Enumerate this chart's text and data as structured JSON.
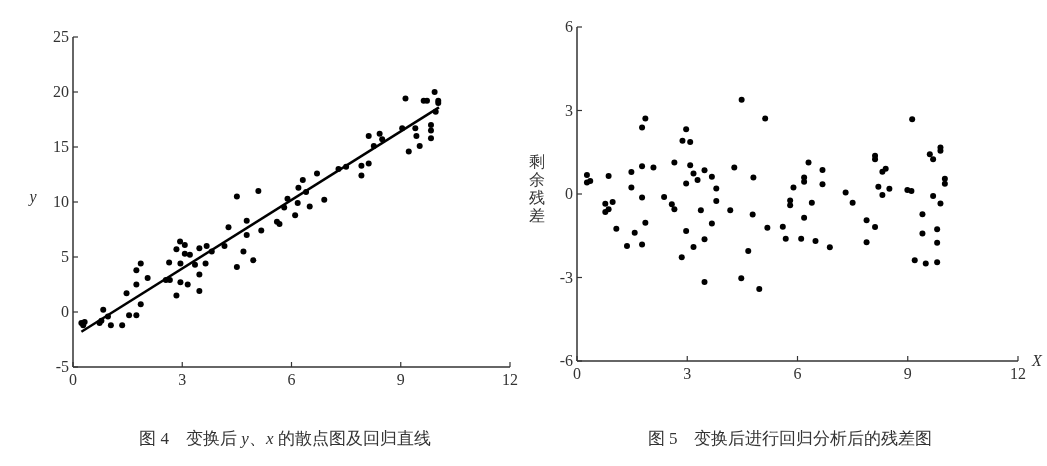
{
  "chart_data": [
    {
      "type": "scatter",
      "title": "图 4　变换后 *y*、*x* 的散点图及回归直线",
      "ylabel": "y",
      "xlim": [
        0,
        12
      ],
      "ylim": [
        -5,
        25
      ],
      "xticks": [
        0,
        3,
        6,
        9,
        12
      ],
      "yticks": [
        -5,
        0,
        5,
        10,
        15,
        20,
        25
      ],
      "series": [
        {
          "type": "scatter",
          "marker": "circle",
          "color": "#000000",
          "x": [
            0.23,
            0.32,
            0.28,
            0.73,
            0.83,
            0.78,
            0.96,
            1.04,
            1.35,
            1.47,
            1.54,
            1.74,
            1.74,
            1.74,
            1.86,
            1.86,
            2.05,
            2.55,
            2.64,
            2.66,
            2.84,
            2.84,
            2.94,
            2.95,
            2.95,
            3.07,
            3.07,
            3.15,
            3.21,
            3.35,
            3.47,
            3.47,
            3.47,
            3.64,
            3.67,
            3.81,
            4.16,
            4.27,
            4.5,
            4.5,
            4.68,
            4.77,
            4.77,
            4.95,
            5.09,
            5.17,
            5.6,
            5.67,
            5.8,
            5.89,
            6.1,
            6.17,
            6.19,
            6.31,
            6.4,
            6.5,
            6.7,
            6.9,
            7.29,
            7.5,
            7.92,
            7.92,
            8.12,
            8.12,
            8.26,
            8.42,
            8.49,
            9.04,
            9.13,
            9.22,
            9.4,
            9.43,
            9.52,
            9.63,
            9.72,
            9.83,
            9.83,
            9.83,
            9.93,
            9.96,
            10.03,
            10.03
          ],
          "values": [
            -1.0,
            -0.9,
            -1.2,
            -1.0,
            0.2,
            -0.8,
            -0.4,
            -1.2,
            -1.2,
            1.7,
            -0.3,
            3.8,
            2.5,
            -0.3,
            4.4,
            0.7,
            3.1,
            2.9,
            4.5,
            2.9,
            5.7,
            1.5,
            6.4,
            4.4,
            2.7,
            6.1,
            5.3,
            2.5,
            5.2,
            4.3,
            5.8,
            3.4,
            1.9,
            4.4,
            6.0,
            5.5,
            6.0,
            7.7,
            10.5,
            4.1,
            5.5,
            8.3,
            7.0,
            4.7,
            11.0,
            7.4,
            8.2,
            8.0,
            9.5,
            10.3,
            8.8,
            9.9,
            11.3,
            12.0,
            10.9,
            9.6,
            12.6,
            10.2,
            13.0,
            13.2,
            13.3,
            12.4,
            13.5,
            16.0,
            15.1,
            16.2,
            15.7,
            16.7,
            19.4,
            14.6,
            16.7,
            16.0,
            15.1,
            19.2,
            19.2,
            17.0,
            16.5,
            15.8,
            20.0,
            18.2,
            19.2,
            19.0
          ]
        },
        {
          "type": "line",
          "color": "#000000",
          "x": [
            0.23,
            10.05
          ],
          "values": [
            -1.8,
            18.6
          ]
        }
      ]
    },
    {
      "type": "scatter",
      "title": "图 5　变换后进行回归分析后的残差图",
      "xlabel": "X",
      "ylabel": "剩余残差",
      "xlim": [
        0,
        12
      ],
      "ylim": [
        -6,
        6
      ],
      "xticks": [
        0,
        3,
        6,
        9,
        12
      ],
      "yticks": [
        -6,
        -3,
        0,
        3,
        6
      ],
      "series": [
        {
          "type": "scatter",
          "marker": "circle",
          "color": "#000000",
          "x": [
            0.27,
            0.27,
            0.36,
            0.77,
            0.77,
            0.86,
            0.86,
            0.97,
            1.07,
            1.36,
            1.48,
            1.48,
            1.57,
            1.77,
            1.77,
            1.77,
            1.77,
            1.86,
            1.86,
            2.08,
            2.37,
            2.58,
            2.65,
            2.65,
            2.85,
            2.87,
            2.97,
            2.97,
            2.97,
            3.08,
            3.08,
            3.17,
            3.17,
            3.28,
            3.37,
            3.47,
            3.47,
            3.47,
            3.67,
            3.67,
            3.79,
            3.79,
            4.17,
            4.28,
            4.48,
            4.47,
            4.66,
            4.8,
            4.78,
            4.96,
            5.12,
            5.18,
            5.6,
            5.68,
            5.8,
            5.8,
            5.89,
            6.1,
            6.18,
            6.18,
            6.18,
            6.3,
            6.39,
            6.49,
            6.68,
            6.68,
            6.88,
            7.31,
            7.5,
            7.88,
            7.88,
            8.11,
            8.11,
            8.11,
            8.2,
            8.31,
            8.31,
            8.4,
            8.5,
            8.99,
            9.1,
            9.12,
            9.19,
            9.4,
            9.4,
            9.49,
            9.6,
            9.69,
            9.69,
            9.8,
            9.8,
            9.8,
            9.89,
            9.89,
            9.89,
            10.01,
            10.01
          ],
          "values": [
            0.68,
            0.41,
            0.47,
            -0.35,
            -0.65,
            -0.55,
            0.65,
            -0.29,
            -1.25,
            -1.87,
            0.79,
            0.23,
            -1.39,
            2.39,
            1.0,
            -0.13,
            -1.81,
            2.71,
            -1.03,
            0.95,
            -0.11,
            -0.37,
            1.13,
            -0.55,
            -2.27,
            1.91,
            2.33,
            0.38,
            -1.33,
            1.87,
            1.03,
            0.74,
            -1.9,
            0.5,
            -0.58,
            0.85,
            -1.63,
            -3.16,
            0.62,
            -1.06,
            0.2,
            -0.25,
            -0.58,
            0.95,
            3.39,
            -3.03,
            -2.05,
            0.59,
            -0.74,
            -3.41,
            2.71,
            -1.21,
            -1.18,
            -1.61,
            -0.23,
            -0.4,
            0.23,
            -1.61,
            -0.85,
            0.59,
            0.44,
            1.13,
            -0.31,
            -1.69,
            0.86,
            0.35,
            -1.91,
            0.05,
            -0.31,
            -0.94,
            -1.73,
            1.37,
            1.25,
            -1.19,
            0.26,
            0.8,
            -0.04,
            0.91,
            0.19,
            0.14,
            0.11,
            2.69,
            -2.38,
            -0.73,
            -1.42,
            -2.5,
            1.43,
            1.25,
            -0.07,
            -1.27,
            -1.75,
            -2.45,
            1.67,
            1.55,
            -0.34,
            0.55,
            0.37
          ]
        }
      ]
    }
  ]
}
